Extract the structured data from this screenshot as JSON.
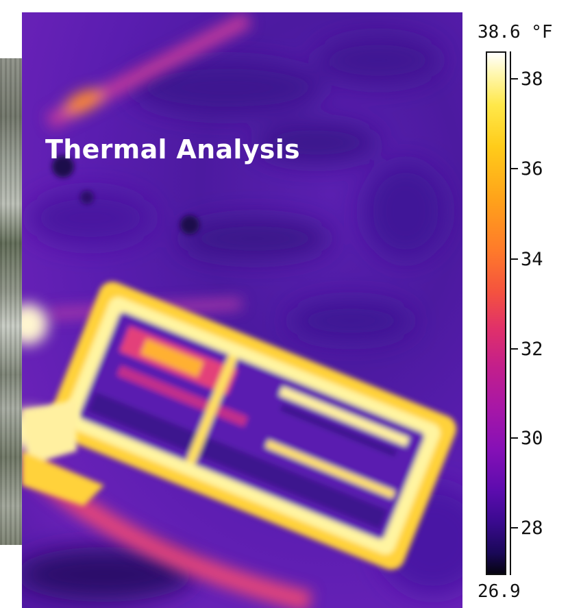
{
  "title": "Thermal Analysis",
  "scale": {
    "max_label": "38.6 °F",
    "min_label": "26.9",
    "ticks": [
      "38",
      "36",
      "34",
      "32",
      "30",
      "28"
    ],
    "gradient_colors": [
      "#ffffff",
      "#ffe84a",
      "#ffa31a",
      "#f4523f",
      "#c41f8a",
      "#8610b6",
      "#3a0a8f",
      "#060410"
    ]
  }
}
